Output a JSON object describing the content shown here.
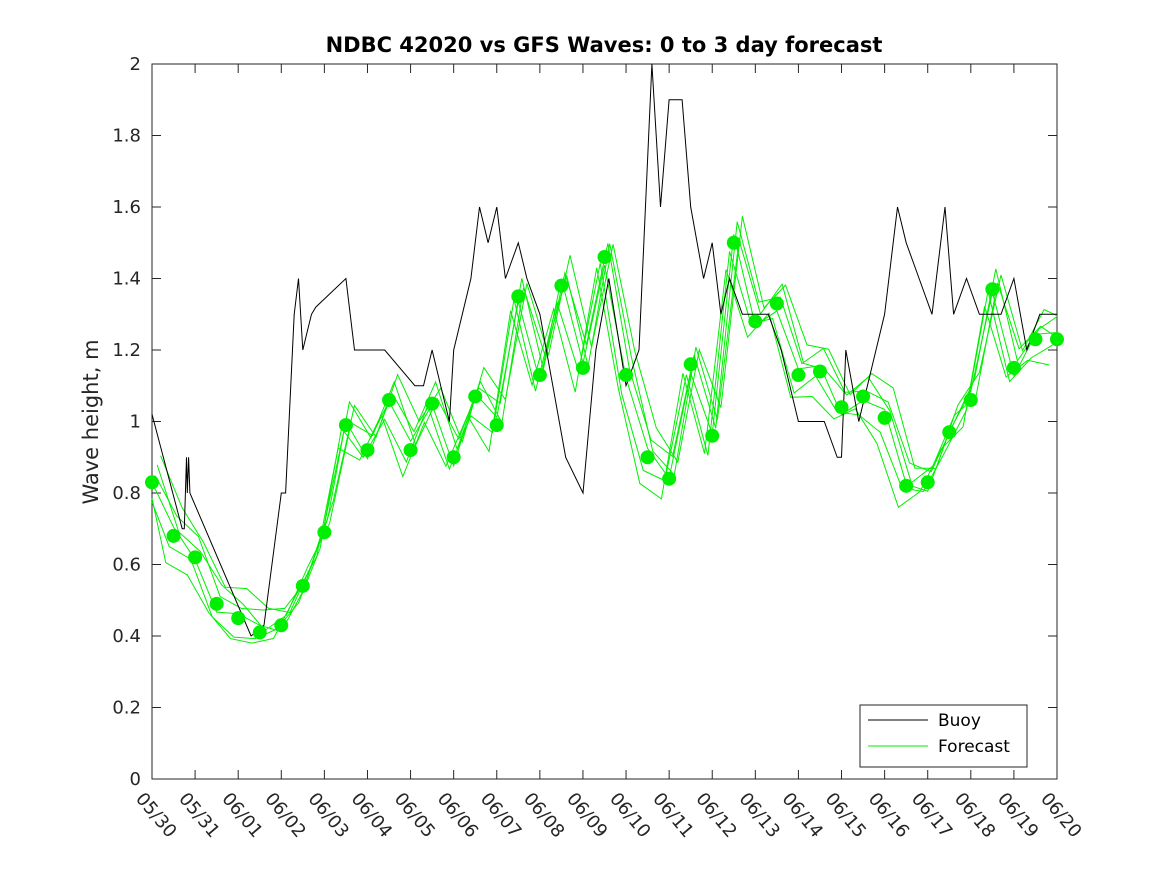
{
  "chart_data": {
    "type": "line",
    "title": "NDBC 42020 vs GFS Waves: 0 to 3 day forecast",
    "xlabel": "",
    "ylabel": "Wave height, m",
    "ylim": [
      0,
      2
    ],
    "yticks": [
      "0",
      "0.2",
      "0.4",
      "0.6",
      "0.8",
      "1",
      "1.2",
      "1.4",
      "1.6",
      "1.8",
      "2"
    ],
    "xlim": [
      0,
      21
    ],
    "xticks": [
      "05/30",
      "05/31",
      "06/01",
      "06/02",
      "06/03",
      "06/04",
      "06/05",
      "06/06",
      "06/07",
      "06/08",
      "06/09",
      "06/10",
      "06/11",
      "06/12",
      "06/13",
      "06/14",
      "06/15",
      "06/16",
      "06/17",
      "06/18",
      "06/19",
      "06/20"
    ],
    "x_unit": "days since 05/30 00:00",
    "grid": false,
    "legend": {
      "placement": "bottom-right",
      "entries": [
        "Buoy",
        "Forecast"
      ]
    },
    "colors": {
      "buoy": "#000000",
      "forecast": "#00ee00"
    },
    "series": [
      {
        "name": "Buoy",
        "x": [
          0,
          0.7,
          0.75,
          0.8,
          0.82,
          0.85,
          0.88,
          2.3,
          2.6,
          3.0,
          3.1,
          3.3,
          3.4,
          3.5,
          3.6,
          3.7,
          3.8,
          4.5,
          4.6,
          4.7,
          4.8,
          4.9,
          5.0,
          5.4,
          6.1,
          6.3,
          6.5,
          6.7,
          6.9,
          7.0,
          7.2,
          7.4,
          7.6,
          7.8,
          8.0,
          8.2,
          8.5,
          8.7,
          9.0,
          9.3,
          9.6,
          10.0,
          10.3,
          10.6,
          11.0,
          11.3,
          11.6,
          11.8,
          12.0,
          12.3,
          12.5,
          12.8,
          13.0,
          13.2,
          13.4,
          13.7,
          14.0,
          14.3,
          14.6,
          15.0,
          15.3,
          15.6,
          15.9,
          16.0,
          16.1,
          16.4,
          16.8,
          17.0,
          17.3,
          17.5,
          17.8,
          18.1,
          18.4,
          18.6,
          18.9,
          19.2,
          19.5,
          19.7,
          20.0,
          20.3,
          20.6,
          21.0
        ],
        "y": [
          1.02,
          0.7,
          0.7,
          0.9,
          0.8,
          0.9,
          0.8,
          0.4,
          0.43,
          0.8,
          0.8,
          1.3,
          1.4,
          1.2,
          1.25,
          1.3,
          1.32,
          1.4,
          1.3,
          1.2,
          1.2,
          1.2,
          1.2,
          1.2,
          1.1,
          1.1,
          1.2,
          1.1,
          1.0,
          1.2,
          1.3,
          1.4,
          1.6,
          1.5,
          1.6,
          1.4,
          1.5,
          1.4,
          1.3,
          1.1,
          0.9,
          0.8,
          1.2,
          1.4,
          1.1,
          1.2,
          2.0,
          1.6,
          1.9,
          1.9,
          1.6,
          1.4,
          1.5,
          1.3,
          1.4,
          1.3,
          1.3,
          1.3,
          1.2,
          1.0,
          1.0,
          1.0,
          0.9,
          0.9,
          1.2,
          1.0,
          1.2,
          1.3,
          1.6,
          1.5,
          1.4,
          1.3,
          1.6,
          1.3,
          1.4,
          1.3,
          1.3,
          1.3,
          1.4,
          1.2,
          1.3,
          1.3
        ]
      },
      {
        "name": "Forecast",
        "x": [
          0,
          0.5,
          1.0,
          1.5,
          2.0,
          2.5,
          3.0,
          3.5,
          4.0,
          4.5,
          5.0,
          5.5,
          6.0,
          6.5,
          7.0,
          7.5,
          8.0,
          8.5,
          9.0,
          9.5,
          10.0,
          10.5,
          11.0,
          11.5,
          12.0,
          12.5,
          13.0,
          13.5,
          14.0,
          14.5,
          15.0,
          15.5,
          16.0,
          16.5,
          17.0,
          17.5,
          18.0,
          18.5,
          19.0,
          19.5,
          20.0,
          20.5,
          21.0
        ],
        "y": [
          0.83,
          0.68,
          0.62,
          0.49,
          0.45,
          0.41,
          0.43,
          0.54,
          0.69,
          0.99,
          0.92,
          1.06,
          0.92,
          1.05,
          0.9,
          1.07,
          0.99,
          1.35,
          1.13,
          1.38,
          1.15,
          1.46,
          1.13,
          0.9,
          0.84,
          1.16,
          0.96,
          1.5,
          1.28,
          1.33,
          1.13,
          1.14,
          1.04,
          1.07,
          1.01,
          0.82,
          0.83,
          0.97,
          1.06,
          1.37,
          1.15,
          1.23,
          1.23
        ]
      }
    ]
  }
}
